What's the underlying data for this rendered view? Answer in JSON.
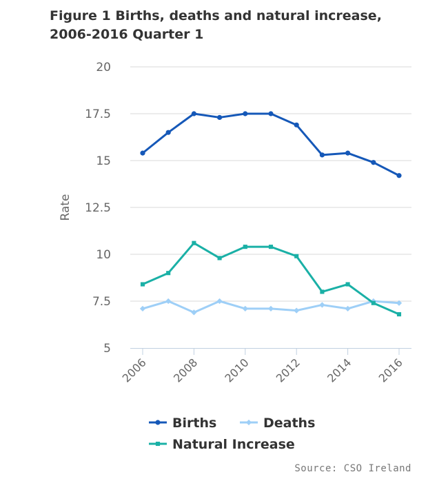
{
  "chart_data": {
    "type": "line",
    "title": "Figure 1 Births, deaths and natural increase, 2006-2016 Quarter 1",
    "xlabel": "",
    "ylabel": "Rate",
    "x": [
      2006,
      2007,
      2008,
      2009,
      2010,
      2011,
      2012,
      2013,
      2014,
      2015,
      2016
    ],
    "x_tick_labels": [
      "2006",
      "2008",
      "2010",
      "2012",
      "2014",
      "2016"
    ],
    "y_tick_labels": [
      "5",
      "7.5",
      "10",
      "12.5",
      "15",
      "17.5",
      "20"
    ],
    "ylim": [
      5,
      20
    ],
    "grid": true,
    "legend_position": "bottom",
    "series": [
      {
        "name": "Births",
        "color": "#1558b8",
        "marker": "circle",
        "values": [
          15.4,
          16.5,
          17.5,
          17.3,
          17.5,
          17.5,
          16.9,
          15.3,
          15.4,
          14.9,
          14.2
        ]
      },
      {
        "name": "Deaths",
        "color": "#9ecff7",
        "marker": "diamond",
        "values": [
          7.1,
          7.5,
          6.9,
          7.5,
          7.1,
          7.1,
          7.0,
          7.3,
          7.1,
          7.5,
          7.4
        ]
      },
      {
        "name": "Natural Increase",
        "color": "#1ab0a6",
        "marker": "square",
        "values": [
          8.4,
          9.0,
          10.6,
          9.8,
          10.4,
          10.4,
          9.9,
          8.0,
          8.4,
          7.4,
          6.8
        ]
      }
    ],
    "source": "Source: CSO Ireland"
  }
}
